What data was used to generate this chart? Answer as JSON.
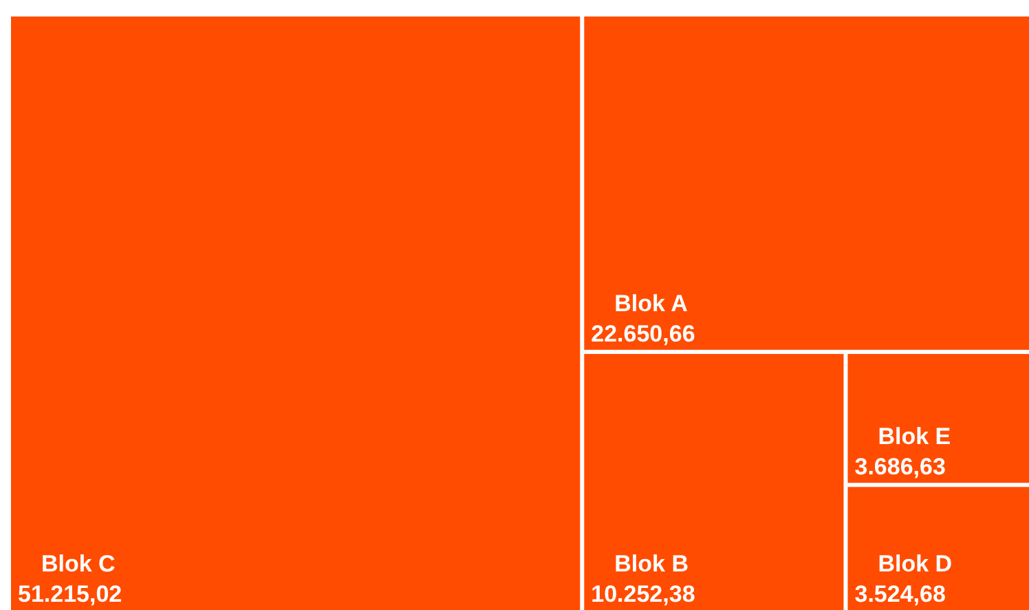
{
  "chart_data": {
    "type": "other",
    "categories": [
      "Blok C",
      "Blok A",
      "Blok B",
      "Blok E",
      "Blok D"
    ],
    "values": [
      51215.02,
      22650.66,
      10252.38,
      3686.63,
      3524.68
    ],
    "value_labels": [
      "51.215,02",
      "22.650,66",
      "10.252,38",
      "3.686,63",
      "3.524,68"
    ],
    "colors": [
      "#ff4c00",
      "#ff4c00",
      "#ff4c00",
      "#ff4c00",
      "#ff4c00"
    ]
  }
}
